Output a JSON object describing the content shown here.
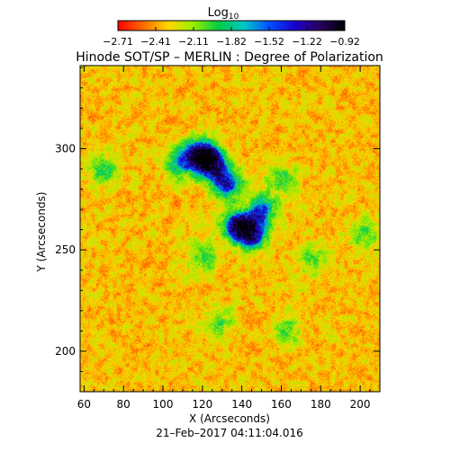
{
  "chart_data": {
    "type": "heatmap",
    "title": "Hinode SOT/SP – MERLIN : Degree of Polarization",
    "xlabel": "X (Arcseconds)",
    "ylabel": "Y (Arcseconds)",
    "date_label": "21–Feb–2017 04:11:04.016",
    "xlim": [
      58,
      210
    ],
    "ylim": [
      180,
      341
    ],
    "xticks": [
      60,
      80,
      100,
      120,
      140,
      160,
      180,
      200
    ],
    "yticks": [
      200,
      250,
      300
    ],
    "colorbar": {
      "title": "Log",
      "title_subscript": "10",
      "range": [
        -2.71,
        -0.92
      ],
      "tick_labels": [
        "−2.71",
        "−2.41",
        "−2.11",
        "−1.82",
        "−1.52",
        "−1.22",
        "−0.92"
      ],
      "colors": [
        "#ff0000",
        "#ff6a00",
        "#ffd700",
        "#99ee00",
        "#00cc44",
        "#00c8c8",
        "#0050ff",
        "#1a00d0",
        "#2a0060",
        "#000000"
      ]
    },
    "high_polarization_regions": [
      {
        "x": 124,
        "y": 293,
        "strength": 1.0
      },
      {
        "x": 118,
        "y": 298,
        "strength": 0.8
      },
      {
        "x": 132,
        "y": 283,
        "strength": 0.75
      },
      {
        "x": 138,
        "y": 262,
        "strength": 0.9
      },
      {
        "x": 145,
        "y": 258,
        "strength": 0.8
      },
      {
        "x": 150,
        "y": 270,
        "strength": 0.6
      },
      {
        "x": 108,
        "y": 293,
        "strength": 0.5
      },
      {
        "x": 160,
        "y": 285,
        "strength": 0.35
      },
      {
        "x": 70,
        "y": 290,
        "strength": 0.4
      },
      {
        "x": 120,
        "y": 246,
        "strength": 0.35
      },
      {
        "x": 176,
        "y": 245,
        "strength": 0.3
      },
      {
        "x": 162,
        "y": 210,
        "strength": 0.3
      },
      {
        "x": 128,
        "y": 214,
        "strength": 0.3
      },
      {
        "x": 202,
        "y": 258,
        "strength": 0.3
      }
    ]
  }
}
